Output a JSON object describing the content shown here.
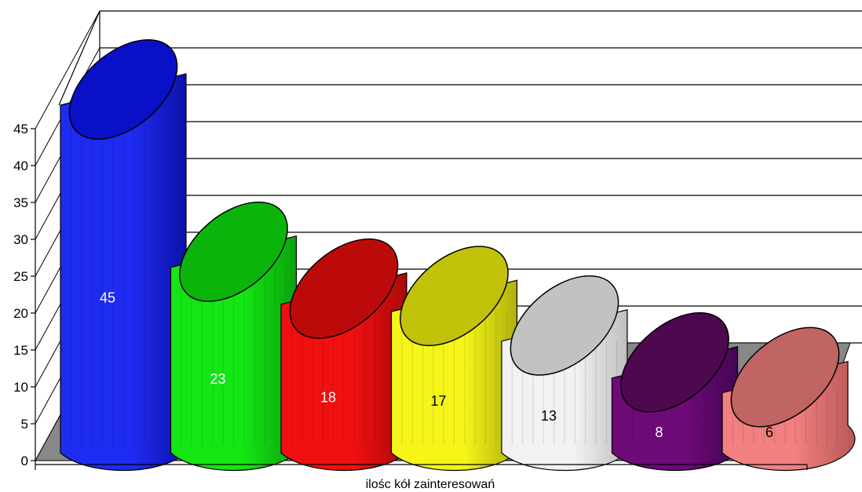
{
  "chart_data": {
    "type": "bar",
    "style": "3d-cylinder",
    "xlabel": "ilośc kół zainteresowań",
    "ylabel": "",
    "title": "",
    "ylim": [
      0,
      45
    ],
    "yticks": [
      "0",
      "5",
      "10",
      "15",
      "20",
      "25",
      "30",
      "35",
      "40",
      "45"
    ],
    "grid": true,
    "legend": "none",
    "values": [
      45,
      23,
      18,
      17,
      13,
      8,
      6
    ],
    "value_labels": [
      "45",
      "23",
      "18",
      "17",
      "13",
      "8",
      "6"
    ],
    "colors": {
      "front": [
        "#1e2bf0",
        "#14e614",
        "#f01010",
        "#f5f51a",
        "#f2f2f2",
        "#6e0a78",
        "#f28080"
      ],
      "side": [
        "#0a0fa0",
        "#0a9a0a",
        "#a00808",
        "#a6a60a",
        "#b8b8b8",
        "#3e0450",
        "#b85858"
      ],
      "top": [
        "#0a10c8",
        "#0ab40a",
        "#bc0a0a",
        "#c2c20a",
        "#c2c2c2",
        "#4e0850",
        "#c06464"
      ],
      "label": [
        "#ffffff",
        "#ffffff",
        "#ffffff",
        "#000000",
        "#000000",
        "#ffffff",
        "#000000"
      ],
      "floor": "#888888"
    }
  }
}
